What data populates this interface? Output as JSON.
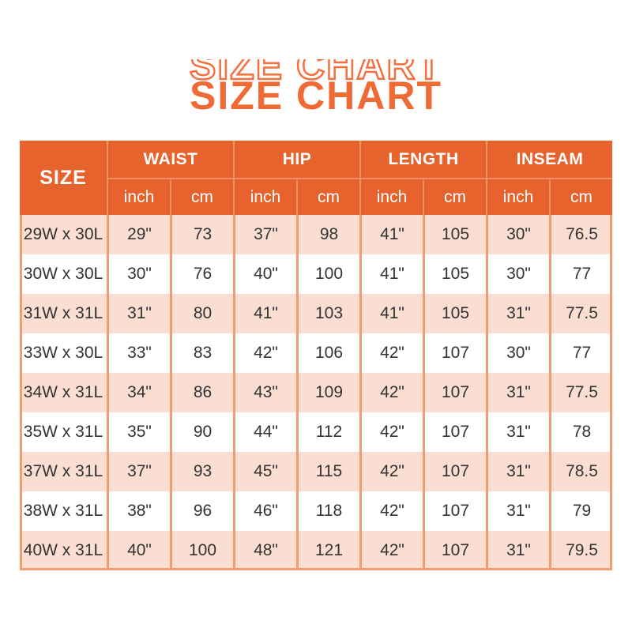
{
  "title": {
    "text": "SIZE CHART"
  },
  "colors": {
    "header_bg": "#E7632D",
    "header_divider": "#F18E64",
    "body_divider": "#F59B72",
    "row_alt_bg": "#FBDED2",
    "row_bg": "#FFFFFF",
    "title_fill": "#F06A35",
    "title_outline_stroke": "#F4713F",
    "header_text": "#FFFFFF",
    "body_text": "#333333"
  },
  "chart_data": {
    "type": "table",
    "title": "SIZE CHART",
    "header": {
      "size_label": "SIZE",
      "groups": [
        {
          "label": "WAIST",
          "units": [
            "inch",
            "cm"
          ]
        },
        {
          "label": "HIP",
          "units": [
            "inch",
            "cm"
          ]
        },
        {
          "label": "LENGTH",
          "units": [
            "inch",
            "cm"
          ]
        },
        {
          "label": "INSEAM",
          "units": [
            "inch",
            "cm"
          ]
        }
      ]
    },
    "columns": [
      "SIZE",
      "WAIST inch",
      "WAIST cm",
      "HIP inch",
      "HIP cm",
      "LENGTH inch",
      "LENGTH cm",
      "INSEAM inch",
      "INSEAM cm"
    ],
    "rows": [
      {
        "size": "29W x 30L",
        "values": [
          "29\"",
          "73",
          "37\"",
          "98",
          "41\"",
          "105",
          "30\"",
          "76.5"
        ]
      },
      {
        "size": "30W x 30L",
        "values": [
          "30\"",
          "76",
          "40\"",
          "100",
          "41\"",
          "105",
          "30\"",
          "77"
        ]
      },
      {
        "size": "31W x 31L",
        "values": [
          "31\"",
          "80",
          "41\"",
          "103",
          "41\"",
          "105",
          "31\"",
          "77.5"
        ]
      },
      {
        "size": "33W x 30L",
        "values": [
          "33\"",
          "83",
          "42\"",
          "106",
          "42\"",
          "107",
          "30\"",
          "77"
        ]
      },
      {
        "size": "34W x 31L",
        "values": [
          "34\"",
          "86",
          "43\"",
          "109",
          "42\"",
          "107",
          "31\"",
          "77.5"
        ]
      },
      {
        "size": "35W x 31L",
        "values": [
          "35\"",
          "90",
          "44\"",
          "112",
          "42\"",
          "107",
          "31\"",
          "78"
        ]
      },
      {
        "size": "37W x 31L",
        "values": [
          "37\"",
          "93",
          "45\"",
          "115",
          "42\"",
          "107",
          "31\"",
          "78.5"
        ]
      },
      {
        "size": "38W x 31L",
        "values": [
          "38\"",
          "96",
          "46\"",
          "118",
          "42\"",
          "107",
          "31\"",
          "79"
        ]
      },
      {
        "size": "40W x 31L",
        "values": [
          "40\"",
          "100",
          "48\"",
          "121",
          "42\"",
          "107",
          "31\"",
          "79.5"
        ]
      }
    ]
  }
}
